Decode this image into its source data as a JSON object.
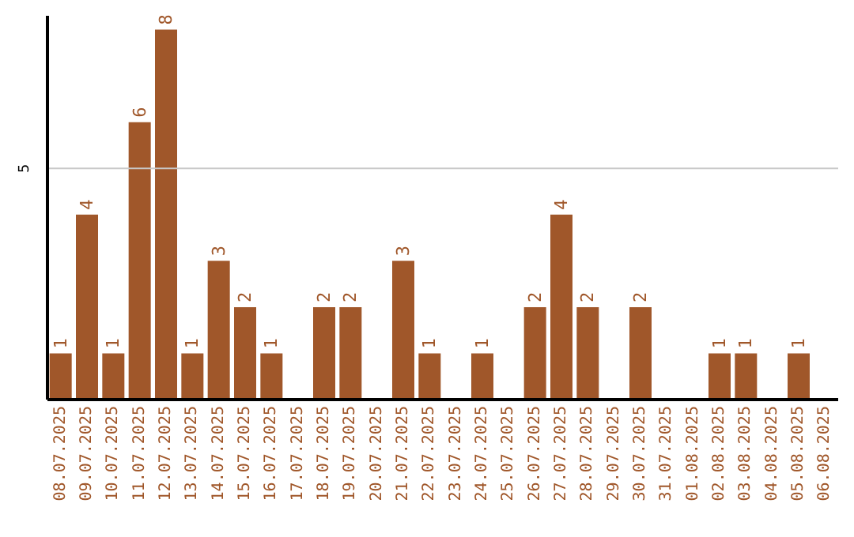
{
  "chart_data": {
    "type": "bar",
    "categories": [
      "08.07.2025",
      "09.07.2025",
      "10.07.2025",
      "11.07.2025",
      "12.07.2025",
      "13.07.2025",
      "14.07.2025",
      "15.07.2025",
      "16.07.2025",
      "17.07.2025",
      "18.07.2025",
      "19.07.2025",
      "20.07.2025",
      "21.07.2025",
      "22.07.2025",
      "23.07.2025",
      "24.07.2025",
      "25.07.2025",
      "26.07.2025",
      "27.07.2025",
      "28.07.2025",
      "29.07.2025",
      "30.07.2025",
      "31.07.2025",
      "01.08.2025",
      "02.08.2025",
      "03.08.2025",
      "04.08.2025",
      "05.08.2025",
      "06.08.2025"
    ],
    "values": [
      1,
      4,
      1,
      6,
      8,
      1,
      3,
      2,
      1,
      0,
      2,
      2,
      0,
      3,
      1,
      0,
      1,
      0,
      2,
      4,
      2,
      0,
      2,
      0,
      0,
      1,
      1,
      0,
      1,
      0
    ],
    "value_labels": [
      "1",
      "4",
      "1",
      "6",
      "8",
      "1",
      "3",
      "2",
      "1",
      null,
      "2",
      "2",
      null,
      "3",
      "1",
      null,
      "1",
      null,
      "2",
      "4",
      "2",
      null,
      "2",
      null,
      null,
      "1",
      "1",
      null,
      "1",
      null
    ],
    "color": "#a0572a",
    "ylim": [
      0,
      8.3
    ],
    "yticks": [
      5
    ],
    "grid": "y"
  }
}
